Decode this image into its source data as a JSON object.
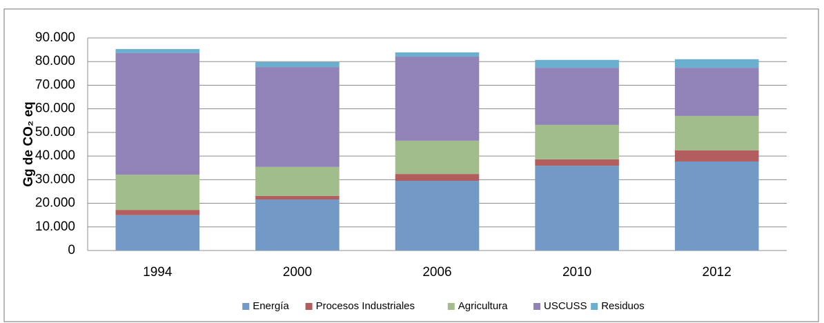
{
  "chart_data": {
    "type": "stacked_bar",
    "y_label": "Gg de CO₂ eq",
    "categories": [
      "1994",
      "2000",
      "2006",
      "2010",
      "2012"
    ],
    "series": [
      {
        "name": "Energía",
        "color": "#7399c6",
        "values": [
          15000,
          21600,
          29500,
          35900,
          37700
        ]
      },
      {
        "name": "Procesos Industriales",
        "color": "#b25e5e",
        "values": [
          2200,
          1500,
          2900,
          2700,
          4700
        ]
      },
      {
        "name": "Agricultura",
        "color": "#a2bd8c",
        "values": [
          14900,
          12300,
          14100,
          14600,
          14600
        ]
      },
      {
        "name": "USCUSS",
        "color": "#9183b8",
        "values": [
          51500,
          42300,
          35600,
          24200,
          20400
        ]
      },
      {
        "name": "Residuos",
        "color": "#6bafcf",
        "values": [
          1700,
          2100,
          1800,
          3300,
          3600
        ]
      }
    ],
    "ylim": [
      0,
      90000
    ],
    "yticks": [
      0,
      {
        "value": 10000,
        "label": "10.000"
      },
      {
        "value": 20000,
        "label": "20.000"
      },
      {
        "value": 30000,
        "label": "30.000"
      },
      {
        "value": 40000,
        "label": "40.000"
      },
      {
        "value": 50000,
        "label": "50.000"
      },
      {
        "value": 60000,
        "label": "60.000"
      },
      {
        "value": 70000,
        "label": "70.000"
      },
      {
        "value": 80000,
        "label": "80.000"
      },
      {
        "value": 90000,
        "label": "90.000"
      }
    ],
    "grid": true,
    "legend": "bottom"
  }
}
